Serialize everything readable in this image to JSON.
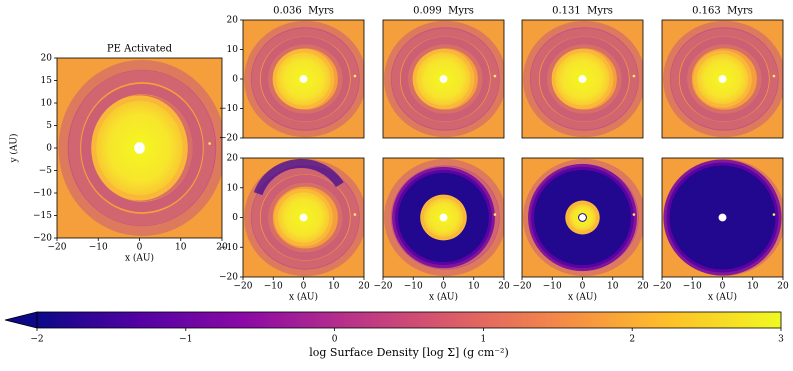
{
  "chart_data": [
    {
      "type": "image",
      "title": "PE Activated",
      "xlabel": "x (AU)",
      "ylabel": "y (AU)",
      "xlim": [
        -20,
        20
      ],
      "ylim": [
        -20,
        20
      ],
      "xticks": [
        {
          "value": -20,
          "label": "−20"
        },
        {
          "value": -10,
          "label": "−10"
        },
        0,
        10,
        20
      ],
      "yticks": [
        {
          "value": -20,
          "label": "−20"
        },
        {
          "value": -15,
          "label": "−15"
        },
        {
          "value": -10,
          "label": "−10"
        },
        {
          "value": -5,
          "label": "−5"
        },
        0,
        5,
        10,
        15,
        20
      ]
    },
    {
      "type": "image",
      "title": "0.036  Myrs",
      "xlim": [
        -20,
        20
      ],
      "ylim": [
        -20,
        20
      ],
      "yticks": [
        {
          "value": -20,
          "label": "−20"
        },
        {
          "value": -10,
          "label": "−10"
        },
        0,
        10,
        20
      ]
    },
    {
      "type": "image",
      "title": "0.099  Myrs",
      "xlim": [
        -20,
        20
      ],
      "ylim": [
        -20,
        20
      ]
    },
    {
      "type": "image",
      "title": "0.131  Myrs",
      "xlim": [
        -20,
        20
      ],
      "ylim": [
        -20,
        20
      ]
    },
    {
      "type": "image",
      "title": "0.163  Myrs",
      "xlim": [
        -20,
        20
      ],
      "ylim": [
        -20,
        20
      ]
    },
    {
      "type": "image",
      "xlabel": "x (AU)",
      "xlim": [
        -20,
        20
      ],
      "ylim": [
        -20,
        20
      ],
      "xticks": [
        {
          "value": -20,
          "label": "−20"
        },
        {
          "value": -10,
          "label": "−10"
        },
        0,
        10,
        20
      ],
      "yticks": [
        {
          "value": -20,
          "label": "−20"
        },
        {
          "value": -10,
          "label": "−10"
        },
        0,
        10,
        20
      ]
    },
    {
      "type": "image",
      "xlabel": "x (AU)",
      "xlim": [
        -20,
        20
      ],
      "ylim": [
        -20,
        20
      ],
      "xticks": [
        {
          "value": -20,
          "label": "−20"
        },
        {
          "value": -10,
          "label": "−10"
        },
        0,
        10,
        20
      ]
    },
    {
      "type": "image",
      "xlabel": "x (AU)",
      "xlim": [
        -20,
        20
      ],
      "ylim": [
        -20,
        20
      ],
      "xticks": [
        {
          "value": -20,
          "label": "−20"
        },
        {
          "value": -10,
          "label": "−10"
        },
        0,
        10,
        20
      ]
    },
    {
      "type": "image",
      "xlabel": "x (AU)",
      "xlim": [
        -20,
        20
      ],
      "ylim": [
        -20,
        20
      ],
      "xticks": [
        {
          "value": -20,
          "label": "−20"
        },
        {
          "value": -10,
          "label": "−10"
        },
        0,
        10,
        20
      ]
    }
  ],
  "colorbar": {
    "label": "log Surface Density [log Σ] (g cm⁻²)",
    "lim": [
      -2,
      3
    ],
    "ticks": [
      {
        "value": -2,
        "label": "−2"
      },
      {
        "value": -1,
        "label": "−1"
      },
      0,
      1,
      2,
      3
    ]
  }
}
